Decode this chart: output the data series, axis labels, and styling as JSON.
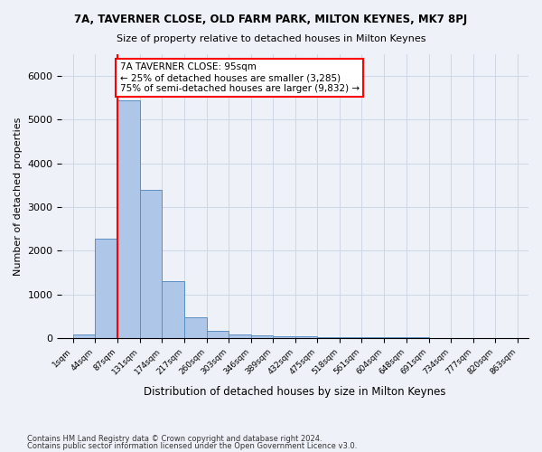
{
  "title1": "7A, TAVERNER CLOSE, OLD FARM PARK, MILTON KEYNES, MK7 8PJ",
  "title2": "Size of property relative to detached houses in Milton Keynes",
  "xlabel": "Distribution of detached houses by size in Milton Keynes",
  "ylabel": "Number of detached properties",
  "bar_values": [
    75,
    2275,
    5450,
    3400,
    1300,
    480,
    165,
    90,
    55,
    50,
    40,
    30,
    25,
    20,
    18,
    15,
    12,
    10,
    8,
    5
  ],
  "bin_edges": [
    1,
    44,
    87,
    131,
    174,
    217,
    260,
    303,
    346,
    389,
    432,
    475,
    518,
    561,
    604,
    648,
    691,
    734,
    777,
    820,
    863
  ],
  "bin_edge_labels": [
    "1sqm",
    "44sqm",
    "87sqm",
    "131sqm",
    "174sqm",
    "217sqm",
    "260sqm",
    "303sqm",
    "346sqm",
    "389sqm",
    "432sqm",
    "475sqm",
    "518sqm",
    "561sqm",
    "604sqm",
    "648sqm",
    "691sqm",
    "734sqm",
    "777sqm",
    "820sqm",
    "863sqm"
  ],
  "bar_color": "#aec6e8",
  "bar_edge_color": "#5a8fc2",
  "annotation_text": "7A TAVERNER CLOSE: 95sqm\n← 25% of detached houses are smaller (3,285)\n75% of semi-detached houses are larger (9,832) →",
  "annotation_box_color": "white",
  "annotation_border_color": "red",
  "vline_color": "red",
  "grid_color": "#d0d8e8",
  "background_color": "#eef2f8",
  "ylim": [
    0,
    6500
  ],
  "footnote1": "Contains HM Land Registry data © Crown copyright and database right 2024.",
  "footnote2": "Contains public sector information licensed under the Open Government Licence v3.0."
}
